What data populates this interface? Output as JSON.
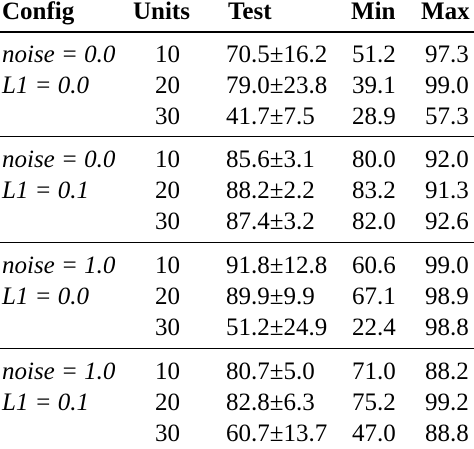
{
  "table": {
    "headers": {
      "config": "Config",
      "units": "Units",
      "test": "Test",
      "min": "Min",
      "max": "Max"
    },
    "groups": [
      {
        "config_line1": "noise = 0.0",
        "config_line2": "L1 = 0.0",
        "rows": [
          {
            "units": "10",
            "test": "70.5±16.2",
            "min": "51.2",
            "max": "97.3"
          },
          {
            "units": "20",
            "test": "79.0±23.8",
            "min": "39.1",
            "max": "99.0"
          },
          {
            "units": "30",
            "test": "41.7±7.5",
            "min": "28.9",
            "max": "57.3"
          }
        ]
      },
      {
        "config_line1": "noise = 0.0",
        "config_line2": "L1 = 0.1",
        "rows": [
          {
            "units": "10",
            "test": "85.6±3.1",
            "min": "80.0",
            "max": "92.0"
          },
          {
            "units": "20",
            "test": "88.2±2.2",
            "min": "83.2",
            "max": "91.3"
          },
          {
            "units": "30",
            "test": "87.4±3.2",
            "min": "82.0",
            "max": "92.6"
          }
        ]
      },
      {
        "config_line1": "noise = 1.0",
        "config_line2": "L1 = 0.0",
        "rows": [
          {
            "units": "10",
            "test": "91.8±12.8",
            "min": "60.6",
            "max": "99.0"
          },
          {
            "units": "20",
            "test": "89.9±9.9",
            "min": "67.1",
            "max": "98.9"
          },
          {
            "units": "30",
            "test": "51.2±24.9",
            "min": "22.4",
            "max": "98.8"
          }
        ]
      },
      {
        "config_line1": "noise = 1.0",
        "config_line2": "L1 = 0.1",
        "rows": [
          {
            "units": "10",
            "test": "80.7±5.0",
            "min": "71.0",
            "max": "88.2"
          },
          {
            "units": "20",
            "test": "82.8±6.3",
            "min": "75.2",
            "max": "99.2"
          },
          {
            "units": "30",
            "test": "60.7±13.7",
            "min": "47.0",
            "max": "88.8"
          }
        ]
      }
    ]
  }
}
